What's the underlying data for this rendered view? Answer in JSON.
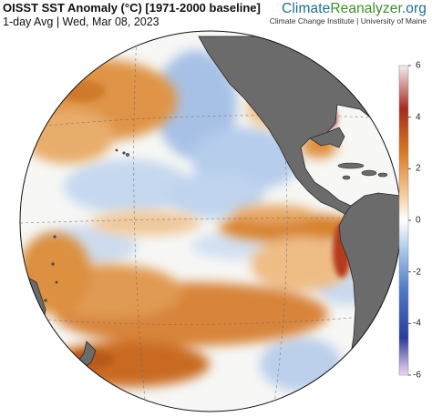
{
  "header": {
    "title": "OISST SST Anomaly (°C) [1971-2000 baseline]",
    "subtitle": "1-day Avg | Wed, Mar 08, 2023"
  },
  "brand": {
    "part1": "Climate",
    "part2": "Reanalyzer",
    "part3": ".org",
    "subtitle": "Climate Change Institute | University of Maine",
    "colors": {
      "climate": "#1f6f8f",
      "reanalyzer": "#3c8c2c"
    }
  },
  "colorbar": {
    "min": -6,
    "max": 6,
    "tick_labels": [
      "6",
      "4",
      "2",
      "0",
      "-2",
      "-4",
      "-6"
    ],
    "tick_values": [
      6,
      4,
      2,
      0,
      -2,
      -4,
      -6
    ],
    "colors": [
      "#f0d8f0",
      "#2b3a9a",
      "#4a78c8",
      "#a9c8e8",
      "#ffffff",
      "#f5c89a",
      "#d9781e",
      "#a8281e",
      "#f0f0f0"
    ]
  },
  "map": {
    "projection": "orthographic",
    "land_color": "#6b6b6b",
    "ocean_neutral": "#f7f7f5",
    "warm_color": "#d98a3a",
    "cool_color": "#a9c3e6"
  }
}
